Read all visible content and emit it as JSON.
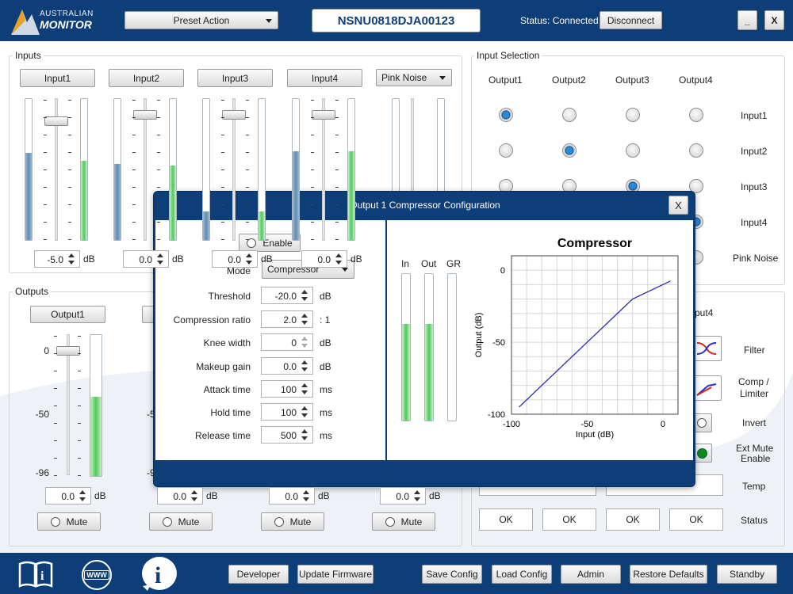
{
  "header": {
    "logo_line1": "AUSTRALIAN",
    "logo_line2": "MONITOR",
    "preset": "Preset Action",
    "serial": "NSNU0818DJA00123",
    "status": "Status: Connected",
    "disconnect": "Disconnect",
    "minimize": "_",
    "close": "X"
  },
  "inputs": {
    "title": "Inputs",
    "channels": [
      {
        "label": "Input1",
        "value": "-5.0",
        "unit": "dB",
        "left_level": 0.62,
        "right_level": 0.56
      },
      {
        "label": "Input2",
        "value": "0.0",
        "unit": "dB",
        "left_level": 0.54,
        "right_level": 0.53
      },
      {
        "label": "Input3",
        "value": "0.0",
        "unit": "dB",
        "left_level": 0.2,
        "right_level": 0.2
      },
      {
        "label": "Input4",
        "value": "0.0",
        "unit": "dB",
        "left_level": 0.63,
        "right_level": 0.63
      }
    ],
    "pink_noise": "Pink Noise"
  },
  "input_selection": {
    "title": "Input Selection",
    "outputs": [
      "Output1",
      "Output2",
      "Output3",
      "Output4"
    ],
    "rows": [
      "Input1",
      "Input2",
      "Input3",
      "Input4",
      "Pink Noise"
    ],
    "selected": [
      0,
      1,
      2,
      3
    ]
  },
  "outputs": {
    "title": "Outputs",
    "channels": [
      {
        "label": "Output1",
        "value": "0.0",
        "unit": "dB",
        "mute": "Mute",
        "level": 0.56
      },
      {
        "label": "Output2",
        "value": "0.0",
        "unit": "dB",
        "mute": "Mute"
      },
      {
        "label": "Output3",
        "value": "0.0",
        "unit": "dB",
        "mute": "Mute"
      },
      {
        "label": "Output4",
        "value": "0.0",
        "unit": "dB",
        "mute": "Mute"
      }
    ],
    "scale": [
      "0",
      "-50",
      "-96"
    ],
    "scale_left": "-5",
    "scale_left2": "-9"
  },
  "output_panel": {
    "header": "put4",
    "filter": "Filter",
    "comp": "Comp /",
    "limiter": "Limiter",
    "invert": "Invert",
    "ext_mute": "Ext Mute",
    "enable": "Enable",
    "temp": "Temp",
    "status": "Status",
    "ok": [
      "OK",
      "OK",
      "OK",
      "OK"
    ]
  },
  "dialog": {
    "title": "Output 1 Compressor Configuration",
    "close": "X",
    "enable": "Enable",
    "mode_label": "Mode",
    "mode": "Compressor",
    "fields": [
      {
        "label": "Threshold",
        "value": "-20.0",
        "unit": "dB"
      },
      {
        "label": "Compression ratio",
        "value": "2.0",
        "unit": ": 1"
      },
      {
        "label": "Knee width",
        "value": "0",
        "unit": "dB"
      },
      {
        "label": "Makeup gain",
        "value": "0.0",
        "unit": "dB"
      },
      {
        "label": "Attack time",
        "value": "100",
        "unit": "ms"
      },
      {
        "label": "Hold time",
        "value": "100",
        "unit": "ms"
      },
      {
        "label": "Release time",
        "value": "500",
        "unit": "ms"
      }
    ],
    "meters": {
      "in": "In",
      "out": "Out",
      "gr": "GR",
      "in_level": 0.66,
      "out_level": 0.66,
      "gr_level": 0
    }
  },
  "chart_data": {
    "type": "line",
    "title": "Compressor",
    "xlabel": "Input (dB)",
    "ylabel": "Output (dB)",
    "xlim": [
      -100,
      10
    ],
    "ylim": [
      -100,
      10
    ],
    "xticks": [
      "-100",
      "-50",
      "0"
    ],
    "yticks": [
      "0",
      "-50",
      "-100"
    ],
    "grid": true,
    "series": [
      {
        "x": [
          -95,
          -20,
          5
        ],
        "y": [
          -95,
          -20,
          -7.5
        ]
      }
    ]
  },
  "footer": {
    "developer": "Developer",
    "update": "Update Firmware",
    "save": "Save Config",
    "load": "Load Config",
    "admin": "Admin",
    "restore": "Restore Defaults",
    "standby": "Standby",
    "www": "WWW"
  }
}
